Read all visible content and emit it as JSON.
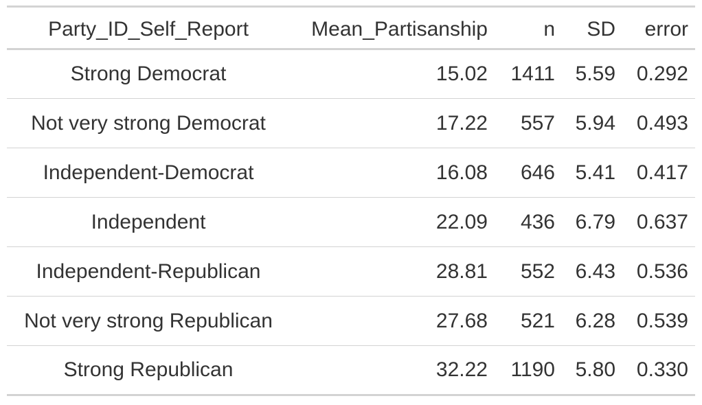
{
  "table": {
    "headers": [
      "Party_ID_Self_Report",
      "Mean_Partisanship",
      "n",
      "SD",
      "error"
    ],
    "rows": [
      [
        "Strong Democrat",
        "15.02",
        "1411",
        "5.59",
        "0.292"
      ],
      [
        "Not very strong Democrat",
        "17.22",
        "557",
        "5.94",
        "0.493"
      ],
      [
        "Independent-Democrat",
        "16.08",
        "646",
        "5.41",
        "0.417"
      ],
      [
        "Independent",
        "22.09",
        "436",
        "6.79",
        "0.637"
      ],
      [
        "Independent-Republican",
        "28.81",
        "552",
        "6.43",
        "0.536"
      ],
      [
        "Not very strong Republican",
        "27.68",
        "521",
        "6.28",
        "0.539"
      ],
      [
        "Strong Republican",
        "32.22",
        "1190",
        "5.80",
        "0.330"
      ]
    ]
  }
}
